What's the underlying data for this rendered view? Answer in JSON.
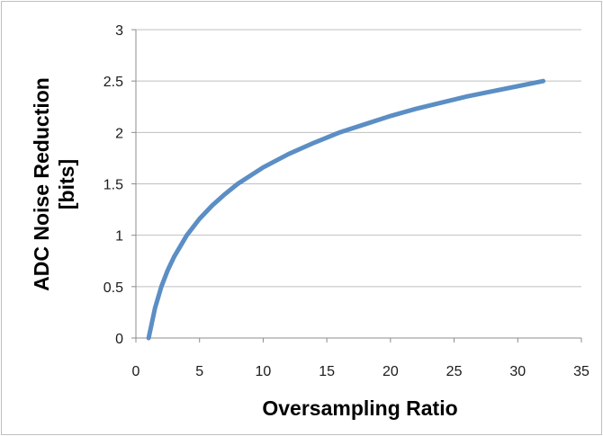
{
  "chart_data": {
    "type": "line",
    "title": "",
    "xlabel": "Oversampling Ratio",
    "ylabel_lines": [
      "ADC Noise Reduction",
      "[bits]"
    ],
    "xlim": [
      0,
      35
    ],
    "ylim": [
      0,
      3
    ],
    "x_ticks": [
      "0",
      "5",
      "10",
      "15",
      "20",
      "25",
      "30",
      "35"
    ],
    "y_ticks": [
      "0",
      "0.5",
      "1",
      "1.5",
      "2",
      "2.5",
      "3"
    ],
    "grid": "horizontal",
    "legend": "none",
    "series": [
      {
        "x": [
          1,
          1.5,
          2,
          2.5,
          3,
          4,
          5,
          6,
          7,
          8,
          10,
          12,
          14,
          16,
          18,
          20,
          22,
          24,
          26,
          28,
          30,
          32
        ],
        "y": [
          0,
          0.29,
          0.5,
          0.66,
          0.79,
          1.0,
          1.16,
          1.29,
          1.4,
          1.5,
          1.66,
          1.79,
          1.9,
          2.0,
          2.08,
          2.16,
          2.23,
          2.29,
          2.35,
          2.4,
          2.45,
          2.5
        ],
        "color": "#5b8ec4"
      }
    ]
  }
}
